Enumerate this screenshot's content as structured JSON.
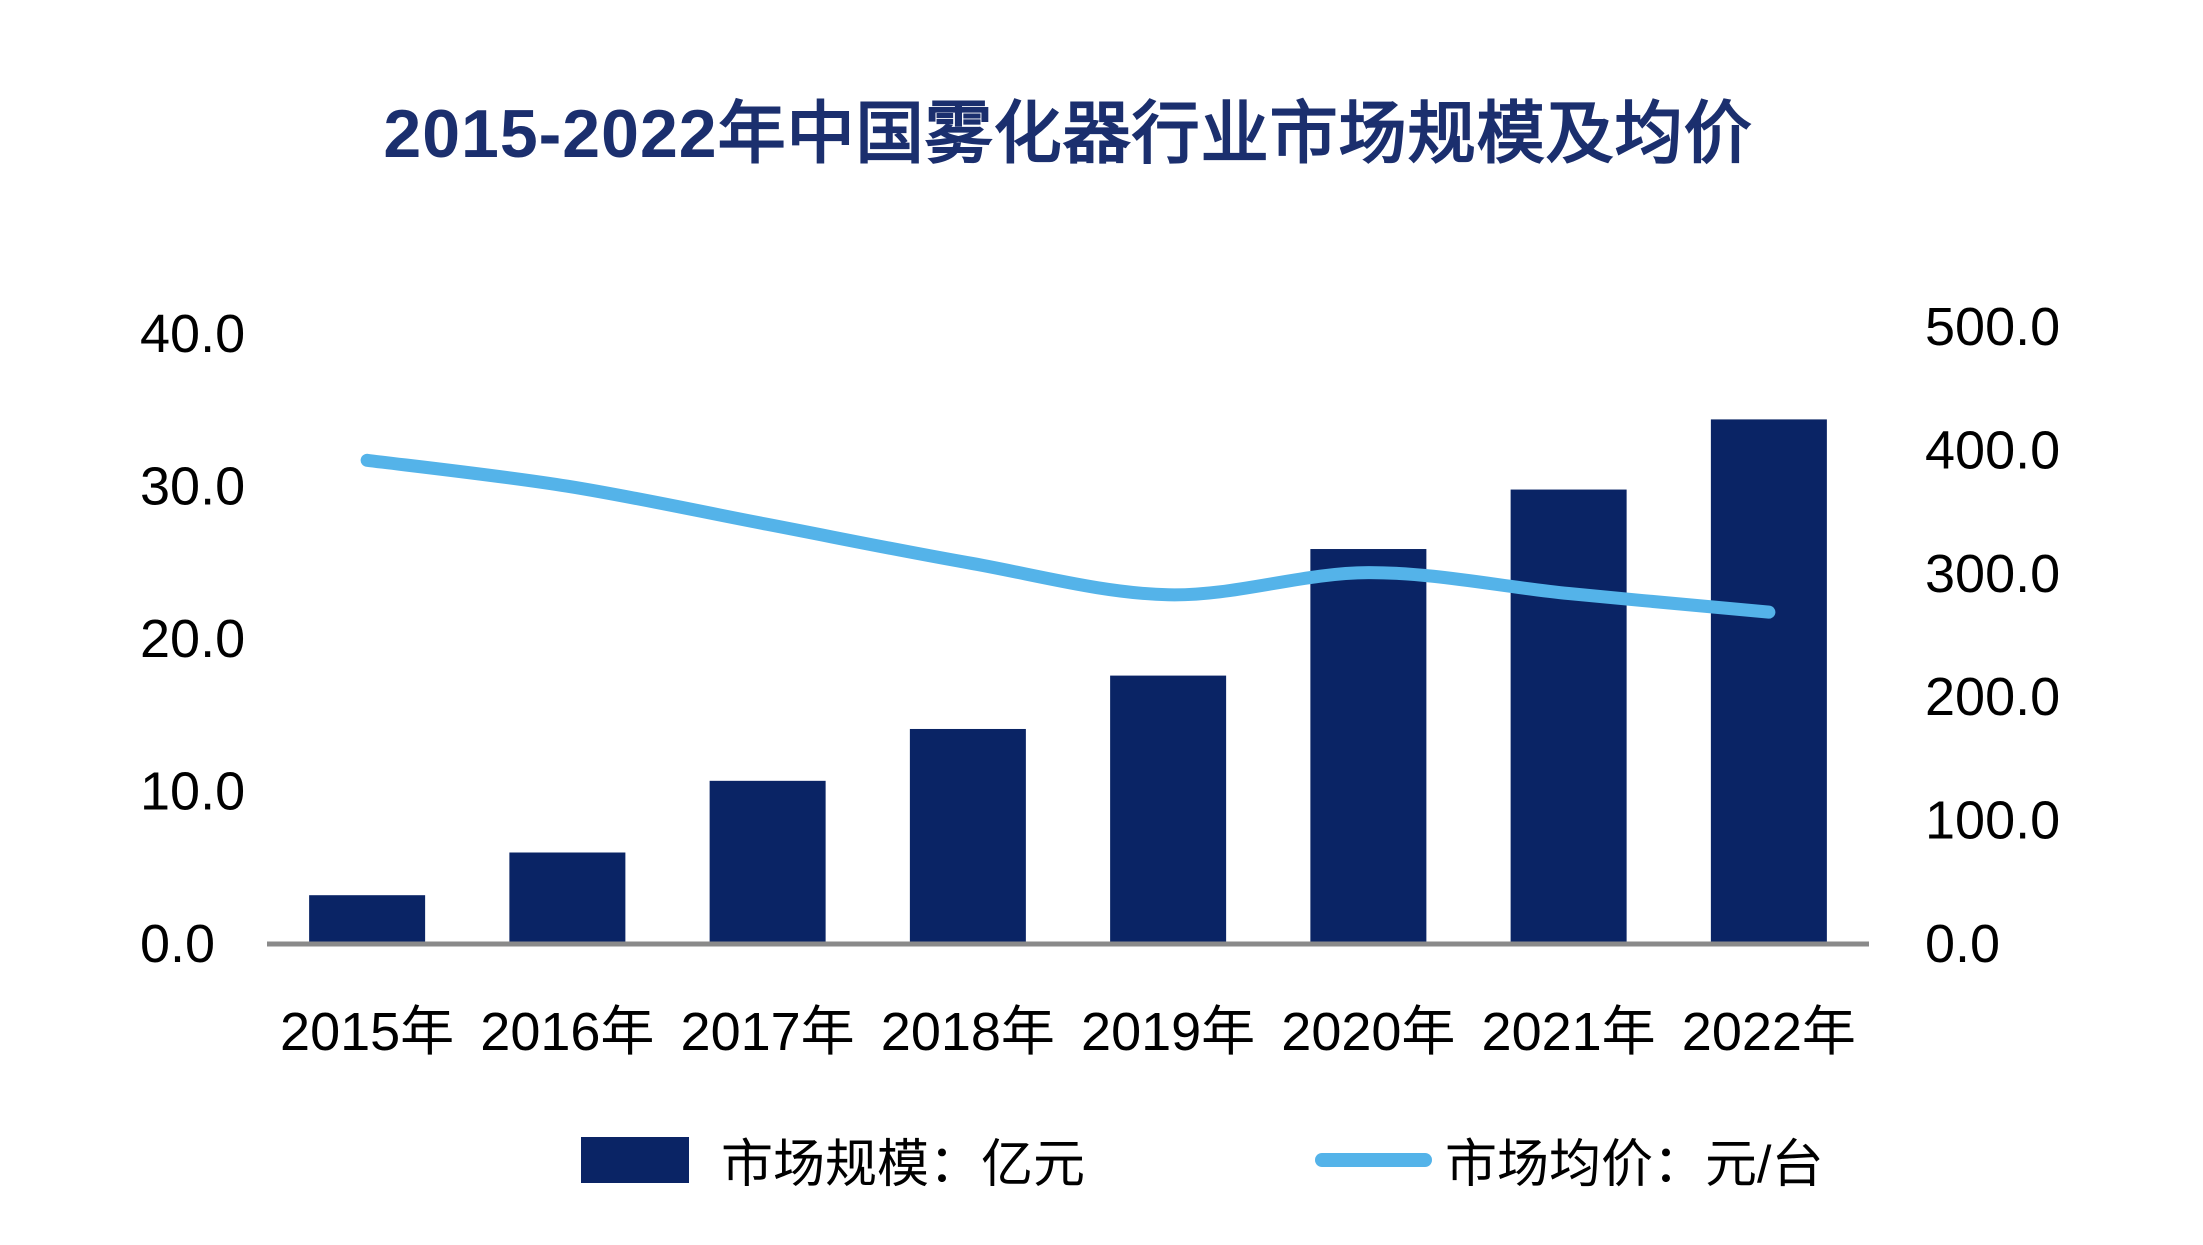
{
  "chart_data": {
    "type": "combo",
    "title": "2015-2022年中国雾化器行业市场规模及均价",
    "categories": [
      "2015年",
      "2016年",
      "2017年",
      "2018年",
      "2019年",
      "2020年",
      "2021年",
      "2022年"
    ],
    "series": [
      {
        "name": "市场规模：亿元",
        "type": "bar",
        "axis": "left",
        "color": "#0a2465",
        "values": [
          3.2,
          6.0,
          10.7,
          14.1,
          17.6,
          25.9,
          29.8,
          34.4
        ]
      },
      {
        "name": "市场均价：元/台",
        "type": "line",
        "axis": "right",
        "color": "#54b3e9",
        "values": [
          392,
          371,
          340,
          309,
          283,
          301,
          284,
          269
        ]
      }
    ],
    "left_axis": {
      "min": 0,
      "max": 40,
      "step": 10,
      "tick_labels": [
        "0.0",
        "10.0",
        "20.0",
        "30.0",
        "40.0"
      ]
    },
    "right_axis": {
      "min": 0,
      "max": 500,
      "step": 100,
      "tick_labels": [
        "0.0",
        "100.0",
        "200.0",
        "300.0",
        "400.0",
        "500.0"
      ]
    },
    "grid": false,
    "legend_position": "bottom",
    "colors": {
      "title": "#1b2f6e",
      "bar": "#0a2465",
      "line": "#54b3e9",
      "axis_text": "#000000",
      "baseline": "#8a8a8a"
    }
  }
}
